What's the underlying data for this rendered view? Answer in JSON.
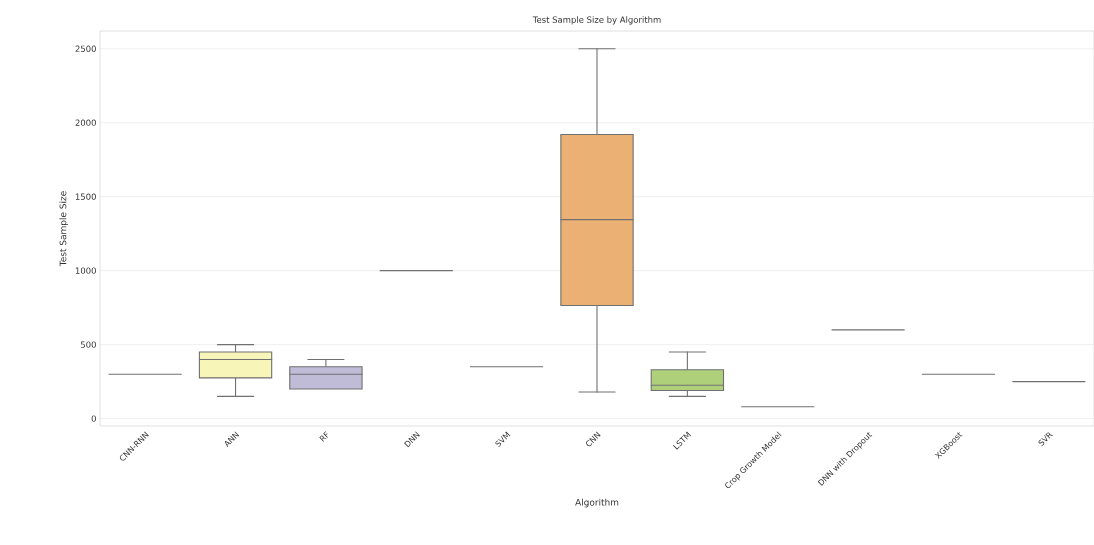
{
  "chart_data": {
    "type": "box",
    "title": "Test Sample Size by Algorithm",
    "xlabel": "Algorithm",
    "ylabel": "Test Sample Size",
    "categories": [
      "CNN-RNN",
      "ANN",
      "RF",
      "DNN",
      "SVM",
      "CNN",
      "LSTM",
      "Crop Growth Model",
      "DNN with Dropout",
      "XGBoost",
      "SVR"
    ],
    "boxes": [
      {
        "low": 300,
        "q1": 300,
        "median": 300,
        "q3": 300,
        "high": 300
      },
      {
        "low": 150,
        "q1": 275,
        "median": 400,
        "q3": 450,
        "high": 500
      },
      {
        "low": 200,
        "q1": 200,
        "median": 300,
        "q3": 350,
        "high": 400
      },
      {
        "low": 1000,
        "q1": 1000,
        "median": 1000,
        "q3": 1000,
        "high": 1000
      },
      {
        "low": 350,
        "q1": 350,
        "median": 350,
        "q3": 350,
        "high": 350
      },
      {
        "low": 180,
        "q1": 765,
        "median": 1345,
        "q3": 1920,
        "high": 2500
      },
      {
        "low": 150,
        "q1": 190,
        "median": 225,
        "q3": 330,
        "high": 450
      },
      {
        "low": 80,
        "q1": 80,
        "median": 80,
        "q3": 80,
        "high": 80
      },
      {
        "low": 600,
        "q1": 600,
        "median": 600,
        "q3": 600,
        "high": 600
      },
      {
        "low": 300,
        "q1": 300,
        "median": 300,
        "q3": 300,
        "high": 300
      },
      {
        "low": 250,
        "q1": 250,
        "median": 250,
        "q3": 250,
        "high": 250
      }
    ],
    "colors": [
      "#707070",
      "#f7f5b8",
      "#c0bcd8",
      "#707070",
      "#707070",
      "#eab074",
      "#afd07a",
      "#707070",
      "#707070",
      "#707070",
      "#707070"
    ],
    "ylim": [
      -50,
      2620
    ],
    "yticks": [
      0,
      500,
      1000,
      1500,
      2000,
      2500
    ],
    "grid": "y"
  }
}
